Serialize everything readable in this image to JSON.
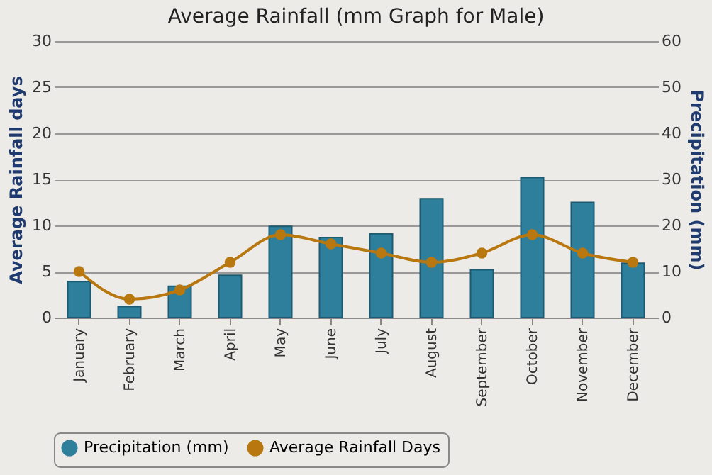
{
  "chart_data": {
    "type": "bar",
    "title": "Average Rainfall (mm Graph for Male)",
    "ylabel": "Average Rainfall days",
    "y2label": "Precipitation (mm)",
    "categories": [
      "January",
      "February",
      "March",
      "April",
      "May",
      "June",
      "July",
      "August",
      "September",
      "October",
      "November",
      "December"
    ],
    "series": [
      {
        "name": "Precipitation (mm)",
        "axis": "y2",
        "color": "#2e7f9c",
        "values": [
          7.8,
          2.4,
          6.8,
          9.2,
          19.8,
          17.4,
          18.2,
          25.8,
          10.4,
          30.4,
          25,
          11.8
        ]
      },
      {
        "name": "Average Rainfall Days",
        "type": "line",
        "axis": "y",
        "color": "#b8770f",
        "marker": "circle",
        "values": [
          5,
          2,
          3,
          6,
          9,
          8,
          7,
          6,
          7,
          9,
          7,
          6
        ]
      }
    ],
    "ylim": [
      0,
      30
    ],
    "yticks": [
      0,
      5,
      10,
      15,
      20,
      25,
      30
    ],
    "y2lim": [
      0,
      60
    ],
    "y2ticks": [
      0,
      10,
      20,
      30,
      40,
      50,
      60
    ],
    "grid": "y",
    "legend": "bottom"
  }
}
